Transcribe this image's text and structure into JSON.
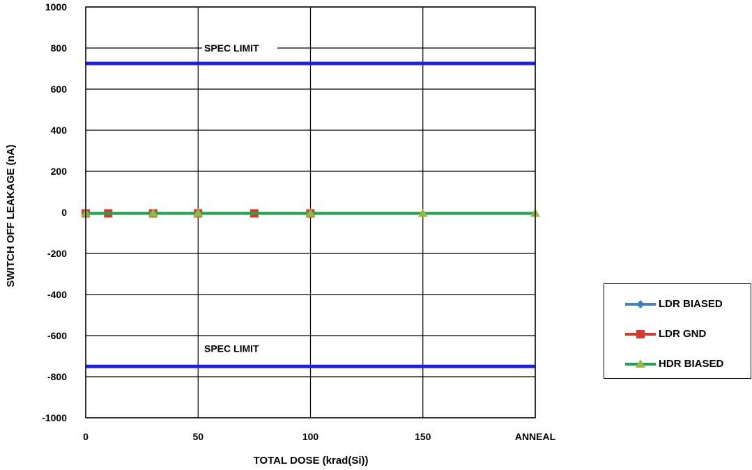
{
  "chart_data": {
    "type": "line",
    "xlabel": "TOTAL DOSE (krad(Si))",
    "ylabel": "SWITCH OFF LEAKAGE (nA)",
    "x_ticks": [
      "0",
      "50",
      "100",
      "150",
      "ANNEAL"
    ],
    "x_tick_values": [
      0,
      50,
      100,
      150,
      200
    ],
    "xlim": [
      0,
      200
    ],
    "ylim": [
      -1000,
      1000
    ],
    "y_ticks": [
      1000,
      800,
      600,
      400,
      200,
      0,
      -200,
      -400,
      -600,
      -800,
      -1000
    ],
    "grid": true,
    "legend_position": "right",
    "spec_limits": [
      {
        "label": "SPEC LIMIT",
        "value": 725
      },
      {
        "label": "SPEC LIMIT",
        "value": -750
      }
    ],
    "spec_color": "#1a1ee6",
    "series": [
      {
        "name": "LDR BIASED",
        "color": "#3f7fc4",
        "marker": "diamond",
        "x": [
          0,
          10,
          30,
          50,
          75,
          100
        ],
        "y": [
          -5,
          -5,
          -5,
          -5,
          -5,
          -5
        ]
      },
      {
        "name": "LDR GND",
        "color": "#d43a2f",
        "marker": "square",
        "x": [
          0,
          10,
          30,
          50,
          75,
          100
        ],
        "y": [
          -5,
          -5,
          -5,
          -5,
          -5,
          -5
        ]
      },
      {
        "name": "HDR BIASED",
        "color": "#1fa64a",
        "marker": "triangle",
        "marker_color": "#9ab84a",
        "x": [
          0,
          30,
          50,
          100,
          150,
          200
        ],
        "y": [
          -5,
          -5,
          -5,
          -5,
          -5,
          -5
        ]
      }
    ]
  }
}
